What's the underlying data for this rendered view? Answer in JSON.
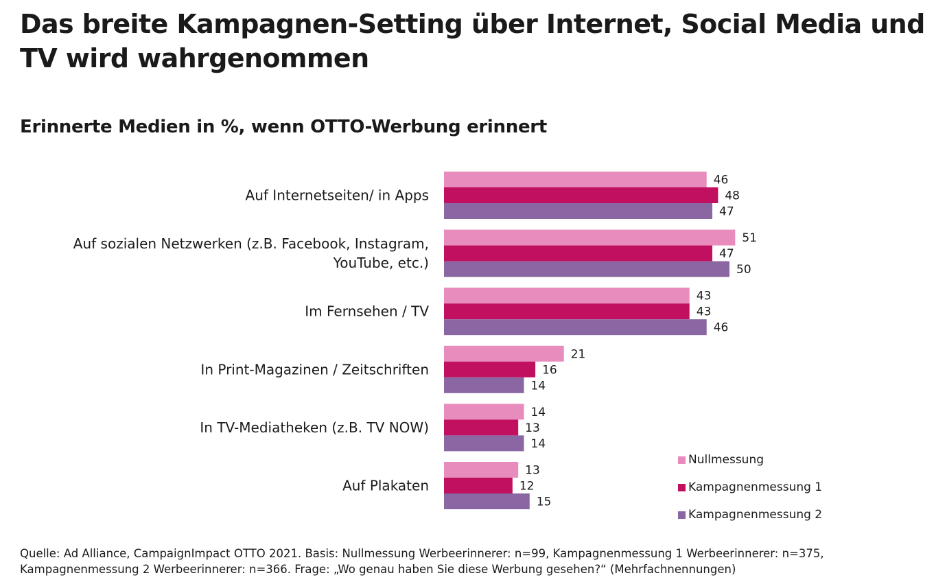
{
  "title": "Das breite Kampagnen-Setting über Internet, Social Media und TV wird wahrgenommen",
  "subtitle": "Erinnerte Medien in %, wenn OTTO-Werbung erinnert",
  "source": "Quelle: Ad Alliance, CampaignImpact OTTO 2021. Basis: Nullmessung Werbeerinnerer: n=99, Kampagnenmessung 1 Werbeerinnerer: n=375, Kampagnenmessung 2 Werbeerinnerer: n=366. Frage: „Wo genau haben Sie diese Werbung gesehen?“ (Mehrfachnennungen)",
  "chart_data": {
    "type": "bar",
    "orientation": "horizontal",
    "title": "Erinnerte Medien in %, wenn OTTO-Werbung erinnert",
    "categories": [
      [
        "Auf Internetseiten/ in Apps"
      ],
      [
        "Auf sozialen Netzwerken (z.B. Facebook, Instagram,",
        "YouTube, etc.)"
      ],
      [
        "Im Fernsehen / TV"
      ],
      [
        "In Print-Magazinen / Zeitschriften"
      ],
      [
        "In TV-Mediatheken (z.B. TV NOW)"
      ],
      [
        "Auf Plakaten"
      ]
    ],
    "series": [
      {
        "name": "Nullmessung",
        "color": "#e88bbd",
        "values": [
          46,
          51,
          43,
          21,
          14,
          13
        ]
      },
      {
        "name": "Kampagnenmessung 1",
        "color": "#c0105f",
        "values": [
          48,
          47,
          43,
          16,
          13,
          12
        ]
      },
      {
        "name": "Kampagnenmessung 2",
        "color": "#8a66a2",
        "values": [
          47,
          50,
          46,
          14,
          14,
          15
        ]
      }
    ],
    "legend_position": "bottom-right",
    "grid": false,
    "axis_visible": false
  }
}
